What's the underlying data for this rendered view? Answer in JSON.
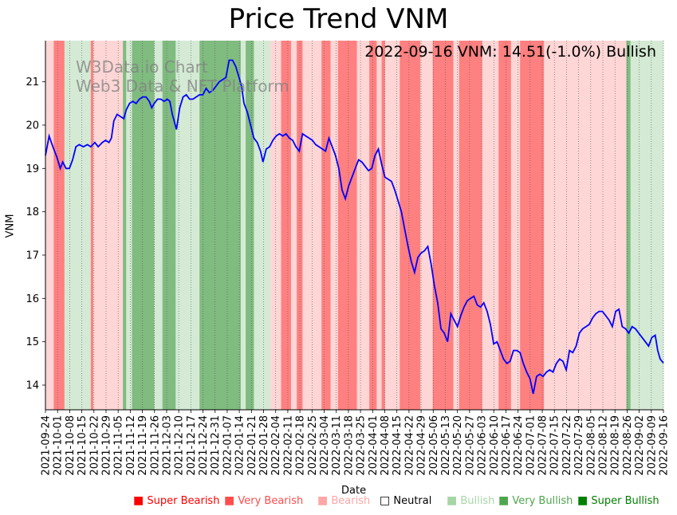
{
  "chart_data": {
    "type": "line",
    "title": "Price Trend VNM",
    "annotation": "2022-09-16 VNM: 14.51(-1.0%) Bullish",
    "watermark": [
      "W3Data.io Chart",
      "Web3 Data & NFT Platform"
    ],
    "xlabel": "Date",
    "ylabel": "VNM",
    "ylim": [
      13.43,
      21.95
    ],
    "yticks": [
      14,
      15,
      16,
      17,
      18,
      19,
      20,
      21
    ],
    "xticks": [
      "2021-09-24",
      "2021-10-01",
      "2021-10-08",
      "2021-10-15",
      "2021-10-22",
      "2021-10-29",
      "2021-11-05",
      "2021-11-12",
      "2021-11-19",
      "2021-11-26",
      "2021-12-03",
      "2021-12-10",
      "2021-12-17",
      "2021-12-24",
      "2021-12-31",
      "2022-01-07",
      "2022-01-14",
      "2022-01-21",
      "2022-01-28",
      "2022-02-04",
      "2022-02-11",
      "2022-02-18",
      "2022-02-25",
      "2022-03-04",
      "2022-03-11",
      "2022-03-18",
      "2022-03-25",
      "2022-04-01",
      "2022-04-08",
      "2022-04-15",
      "2022-04-22",
      "2022-04-29",
      "2022-05-06",
      "2022-05-13",
      "2022-05-20",
      "2022-05-27",
      "2022-06-03",
      "2022-06-10",
      "2022-06-17",
      "2022-06-24",
      "2022-07-01",
      "2022-07-08",
      "2022-07-15",
      "2022-07-22",
      "2022-07-29",
      "2022-08-05",
      "2022-08-12",
      "2022-08-19",
      "2022-08-26",
      "2022-09-02",
      "2022-09-09",
      "2022-09-16"
    ],
    "series": [
      {
        "name": "VNM",
        "color": "#0000ff",
        "points": [
          [
            0,
            19.3
          ],
          [
            0.25,
            19.55
          ],
          [
            0.45,
            19.75
          ],
          [
            0.9,
            19.5
          ],
          [
            1.4,
            19.25
          ],
          [
            1.8,
            19.0
          ],
          [
            2.1,
            19.15
          ],
          [
            2.5,
            19.0
          ],
          [
            2.9,
            19.0
          ],
          [
            3.3,
            19.2
          ],
          [
            3.7,
            19.5
          ],
          [
            4.1,
            19.55
          ],
          [
            4.6,
            19.5
          ],
          [
            5.1,
            19.55
          ],
          [
            5.5,
            19.5
          ],
          [
            6.0,
            19.6
          ],
          [
            6.4,
            19.5
          ],
          [
            6.9,
            19.6
          ],
          [
            7.3,
            19.65
          ],
          [
            7.7,
            19.6
          ],
          [
            8.0,
            19.7
          ],
          [
            8.3,
            20.1
          ],
          [
            8.7,
            20.25
          ],
          [
            9.1,
            20.2
          ],
          [
            9.5,
            20.15
          ],
          [
            9.8,
            20.35
          ],
          [
            10.2,
            20.5
          ],
          [
            10.6,
            20.55
          ],
          [
            11.0,
            20.5
          ],
          [
            11.4,
            20.6
          ],
          [
            11.8,
            20.65
          ],
          [
            12.2,
            20.65
          ],
          [
            12.6,
            20.55
          ],
          [
            12.9,
            20.4
          ],
          [
            13.2,
            20.5
          ],
          [
            13.6,
            20.6
          ],
          [
            14.0,
            20.6
          ],
          [
            14.4,
            20.55
          ],
          [
            14.8,
            20.6
          ],
          [
            15.1,
            20.55
          ],
          [
            15.4,
            20.25
          ],
          [
            15.9,
            19.9
          ],
          [
            16.3,
            20.4
          ],
          [
            16.7,
            20.65
          ],
          [
            17.1,
            20.7
          ],
          [
            17.5,
            20.6
          ],
          [
            17.9,
            20.6
          ],
          [
            18.3,
            20.65
          ],
          [
            18.7,
            20.7
          ],
          [
            19.1,
            20.7
          ],
          [
            19.5,
            20.85
          ],
          [
            19.9,
            20.75
          ],
          [
            20.3,
            20.8
          ],
          [
            20.7,
            20.9
          ],
          [
            21.1,
            21.0
          ],
          [
            21.5,
            21.05
          ],
          [
            21.9,
            21.1
          ],
          [
            22.3,
            21.5
          ],
          [
            22.7,
            21.5
          ],
          [
            23.1,
            21.35
          ],
          [
            23.5,
            21.1
          ],
          [
            23.8,
            20.9
          ],
          [
            24.1,
            20.5
          ],
          [
            24.5,
            20.3
          ],
          [
            24.9,
            20.0
          ],
          [
            25.3,
            19.7
          ],
          [
            25.7,
            19.6
          ],
          [
            26.1,
            19.4
          ],
          [
            26.4,
            19.15
          ],
          [
            26.8,
            19.45
          ],
          [
            27.2,
            19.5
          ],
          [
            27.6,
            19.65
          ],
          [
            28.0,
            19.75
          ],
          [
            28.4,
            19.8
          ],
          [
            28.8,
            19.75
          ],
          [
            29.2,
            19.8
          ],
          [
            29.6,
            19.7
          ],
          [
            30.0,
            19.65
          ],
          [
            30.4,
            19.5
          ],
          [
            30.8,
            19.4
          ],
          [
            31.2,
            19.8
          ],
          [
            31.6,
            19.75
          ],
          [
            32.0,
            19.7
          ],
          [
            32.4,
            19.65
          ],
          [
            32.8,
            19.55
          ],
          [
            33.2,
            19.5
          ],
          [
            33.6,
            19.45
          ],
          [
            34.0,
            19.4
          ],
          [
            34.4,
            19.7
          ],
          [
            34.8,
            19.5
          ],
          [
            35.2,
            19.3
          ],
          [
            35.6,
            19.0
          ],
          [
            36.0,
            18.5
          ],
          [
            36.4,
            18.3
          ],
          [
            36.8,
            18.6
          ],
          [
            37.2,
            18.8
          ],
          [
            37.6,
            19.0
          ],
          [
            38.0,
            19.2
          ],
          [
            38.4,
            19.15
          ],
          [
            38.8,
            19.05
          ],
          [
            39.2,
            18.95
          ],
          [
            39.6,
            19.0
          ],
          [
            40.0,
            19.3
          ],
          [
            40.4,
            19.45
          ],
          [
            40.8,
            19.1
          ],
          [
            41.2,
            18.8
          ],
          [
            41.6,
            18.75
          ],
          [
            42.0,
            18.7
          ],
          [
            42.4,
            18.5
          ],
          [
            42.8,
            18.25
          ],
          [
            43.2,
            18.0
          ],
          [
            43.6,
            17.6
          ],
          [
            44.0,
            17.2
          ],
          [
            44.4,
            16.85
          ],
          [
            44.8,
            16.6
          ],
          [
            45.2,
            16.95
          ],
          [
            45.6,
            17.05
          ],
          [
            46.0,
            17.1
          ],
          [
            46.4,
            17.2
          ],
          [
            46.8,
            16.8
          ],
          [
            47.2,
            16.3
          ],
          [
            47.6,
            15.9
          ],
          [
            48.0,
            15.3
          ],
          [
            48.4,
            15.2
          ],
          [
            48.8,
            15.0
          ],
          [
            49.2,
            15.65
          ],
          [
            49.6,
            15.5
          ],
          [
            50.0,
            15.35
          ],
          [
            50.4,
            15.6
          ],
          [
            50.8,
            15.8
          ],
          [
            51.2,
            15.95
          ],
          [
            51.6,
            16.0
          ],
          [
            52.0,
            16.05
          ],
          [
            52.4,
            15.85
          ],
          [
            52.8,
            15.8
          ],
          [
            53.2,
            15.9
          ],
          [
            53.6,
            15.7
          ],
          [
            54.0,
            15.4
          ],
          [
            54.4,
            14.95
          ],
          [
            54.8,
            15.0
          ],
          [
            55.2,
            14.8
          ],
          [
            55.6,
            14.6
          ],
          [
            56.0,
            14.5
          ],
          [
            56.4,
            14.55
          ],
          [
            56.8,
            14.8
          ],
          [
            57.2,
            14.8
          ],
          [
            57.6,
            14.75
          ],
          [
            58.0,
            14.5
          ],
          [
            58.4,
            14.3
          ],
          [
            58.8,
            14.15
          ],
          [
            59.2,
            13.8
          ],
          [
            59.6,
            14.2
          ],
          [
            60.0,
            14.25
          ],
          [
            60.4,
            14.2
          ],
          [
            60.8,
            14.3
          ],
          [
            61.2,
            14.35
          ],
          [
            61.6,
            14.3
          ],
          [
            62.0,
            14.5
          ],
          [
            62.4,
            14.6
          ],
          [
            62.8,
            14.55
          ],
          [
            63.2,
            14.35
          ],
          [
            63.6,
            14.8
          ],
          [
            64.0,
            14.75
          ],
          [
            64.4,
            14.9
          ],
          [
            64.8,
            15.2
          ],
          [
            65.2,
            15.3
          ],
          [
            65.6,
            15.35
          ],
          [
            66.0,
            15.4
          ],
          [
            66.4,
            15.55
          ],
          [
            66.8,
            15.65
          ],
          [
            67.2,
            15.7
          ],
          [
            67.6,
            15.7
          ],
          [
            68.0,
            15.6
          ],
          [
            68.4,
            15.5
          ],
          [
            68.8,
            15.35
          ],
          [
            69.2,
            15.7
          ],
          [
            69.6,
            15.75
          ],
          [
            70.0,
            15.35
          ],
          [
            70.4,
            15.3
          ],
          [
            70.8,
            15.2
          ],
          [
            71.2,
            15.35
          ],
          [
            71.6,
            15.3
          ],
          [
            72.0,
            15.2
          ],
          [
            72.4,
            15.1
          ],
          [
            72.8,
            15.0
          ],
          [
            73.2,
            14.9
          ],
          [
            73.6,
            15.1
          ],
          [
            74.0,
            15.15
          ],
          [
            74.3,
            14.8
          ],
          [
            74.6,
            14.6
          ],
          [
            75.0,
            14.51
          ]
        ]
      }
    ],
    "regimes": [
      {
        "from": 0,
        "to": 1,
        "level": "bearish"
      },
      {
        "from": 1,
        "to": 2.3,
        "level": "very-bearish"
      },
      {
        "from": 2.3,
        "to": 5.5,
        "level": "bullish"
      },
      {
        "from": 5.5,
        "to": 5.8,
        "level": "very-bearish"
      },
      {
        "from": 5.8,
        "to": 9.4,
        "level": "bearish"
      },
      {
        "from": 9.4,
        "to": 9.8,
        "level": "very-bullish"
      },
      {
        "from": 9.8,
        "to": 10.5,
        "level": "bullish"
      },
      {
        "from": 10.5,
        "to": 13.2,
        "level": "very-bullish"
      },
      {
        "from": 13.2,
        "to": 14.2,
        "level": "bullish"
      },
      {
        "from": 14.2,
        "to": 15.8,
        "level": "very-bullish"
      },
      {
        "from": 15.8,
        "to": 18.7,
        "level": "bullish"
      },
      {
        "from": 18.7,
        "to": 23.7,
        "level": "very-bullish"
      },
      {
        "from": 23.7,
        "to": 24.3,
        "level": "bullish"
      },
      {
        "from": 24.3,
        "to": 25.3,
        "level": "very-bullish"
      },
      {
        "from": 25.3,
        "to": 27.3,
        "level": "bullish"
      },
      {
        "from": 27.3,
        "to": 28.6,
        "level": "bearish"
      },
      {
        "from": 28.6,
        "to": 29.8,
        "level": "very-bearish"
      },
      {
        "from": 29.8,
        "to": 30.5,
        "level": "bearish"
      },
      {
        "from": 30.5,
        "to": 31.2,
        "level": "very-bearish"
      },
      {
        "from": 31.2,
        "to": 33.5,
        "level": "bearish"
      },
      {
        "from": 33.5,
        "to": 34.6,
        "level": "very-bearish"
      },
      {
        "from": 34.6,
        "to": 35.5,
        "level": "bearish"
      },
      {
        "from": 35.5,
        "to": 37.8,
        "level": "very-bearish"
      },
      {
        "from": 37.8,
        "to": 39.3,
        "level": "bearish"
      },
      {
        "from": 39.3,
        "to": 40.2,
        "level": "very-bearish"
      },
      {
        "from": 40.2,
        "to": 40.8,
        "level": "bearish"
      },
      {
        "from": 40.8,
        "to": 41.2,
        "level": "very-bearish"
      },
      {
        "from": 41.2,
        "to": 43.0,
        "level": "bearish"
      },
      {
        "from": 43.0,
        "to": 45.5,
        "level": "very-bearish"
      },
      {
        "from": 45.5,
        "to": 47.0,
        "level": "bearish"
      },
      {
        "from": 47.0,
        "to": 49.5,
        "level": "very-bearish"
      },
      {
        "from": 49.5,
        "to": 50.2,
        "level": "bearish"
      },
      {
        "from": 50.2,
        "to": 53.0,
        "level": "very-bearish"
      },
      {
        "from": 53.0,
        "to": 55.0,
        "level": "bearish"
      },
      {
        "from": 55.0,
        "to": 56.5,
        "level": "very-bearish"
      },
      {
        "from": 56.5,
        "to": 57.6,
        "level": "bearish"
      },
      {
        "from": 57.6,
        "to": 60.5,
        "level": "very-bearish"
      },
      {
        "from": 60.5,
        "to": 63.5,
        "level": "bearish"
      },
      {
        "from": 63.5,
        "to": 70.5,
        "level": "bearish"
      },
      {
        "from": 70.5,
        "to": 71.0,
        "level": "very-bullish"
      },
      {
        "from": 71.0,
        "to": 75.0,
        "level": "bullish"
      }
    ],
    "legend": [
      {
        "label": "Super Bearish",
        "color": "#ff0000",
        "swatch": "■"
      },
      {
        "label": "Very Bearish",
        "color": "#ff4d4d",
        "swatch": "■"
      },
      {
        "label": "Bearish",
        "color": "#ffa6a6",
        "swatch": "■"
      },
      {
        "label": "Neutral",
        "color": "#000000",
        "swatch": "□"
      },
      {
        "label": "Bullish",
        "color": "#a6d6a6",
        "swatch": "■"
      },
      {
        "label": "Very Bullish",
        "color": "#4da64d",
        "swatch": "■"
      },
      {
        "label": "Super Bullish",
        "color": "#008000",
        "swatch": "■"
      }
    ],
    "x_range": [
      0,
      75
    ]
  }
}
